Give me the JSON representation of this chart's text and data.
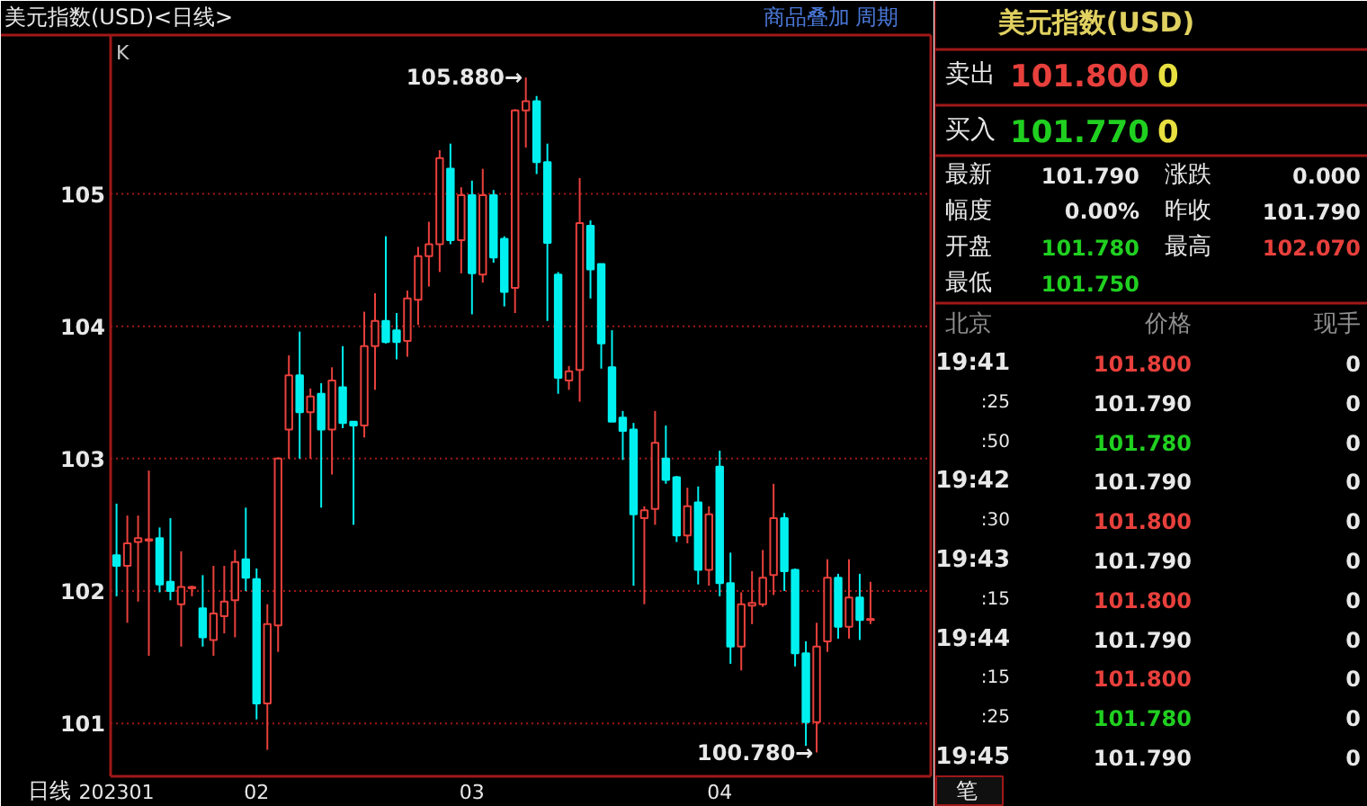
{
  "chart_data": [
    {
      "type": "candlestick",
      "title": "美元指数(USD)<日线>",
      "xlabel": "日线",
      "categories": [
        "202301",
        null,
        null,
        null,
        null,
        null,
        null,
        null,
        null,
        null,
        null,
        null,
        null,
        "02",
        null,
        null,
        null,
        null,
        null,
        null,
        null,
        null,
        null,
        null,
        null,
        null,
        null,
        null,
        null,
        null,
        null,
        null,
        null,
        "03",
        null,
        null,
        null,
        null,
        null,
        null,
        null,
        null,
        null,
        null,
        null,
        null,
        null,
        null,
        null,
        null,
        null,
        null,
        null,
        null,
        null,
        null,
        "04",
        null,
        null,
        null,
        null,
        null,
        null,
        null,
        null,
        null,
        null,
        null,
        null,
        null,
        null
      ],
      "ohlc": [
        [
          102.27,
          102.66,
          101.96,
          102.19
        ],
        [
          102.19,
          102.57,
          101.76,
          102.36
        ],
        [
          102.37,
          102.57,
          101.92,
          102.4
        ],
        [
          102.38,
          102.91,
          101.51,
          102.39
        ],
        [
          102.4,
          102.48,
          101.99,
          102.05
        ],
        [
          102.07,
          102.55,
          101.93,
          102.0
        ],
        [
          101.9,
          102.3,
          101.58,
          102.03
        ],
        [
          102.02,
          102.04,
          101.96,
          102.03
        ],
        [
          101.87,
          102.12,
          101.58,
          101.65
        ],
        [
          101.63,
          102.19,
          101.51,
          101.83
        ],
        [
          101.81,
          102.19,
          101.68,
          101.92
        ],
        [
          101.93,
          102.31,
          101.65,
          102.22
        ],
        [
          102.24,
          102.63,
          102.0,
          102.1
        ],
        [
          102.09,
          102.17,
          101.03,
          101.15
        ],
        [
          101.15,
          101.9,
          100.8,
          101.75
        ],
        [
          101.74,
          103.01,
          101.54,
          103.0
        ],
        [
          103.22,
          103.78,
          103.0,
          103.63
        ],
        [
          103.63,
          103.96,
          103.0,
          103.35
        ],
        [
          103.35,
          103.53,
          103.0,
          103.47
        ],
        [
          103.49,
          103.57,
          102.63,
          103.22
        ],
        [
          103.22,
          103.69,
          102.88,
          103.59
        ],
        [
          103.54,
          103.85,
          103.23,
          103.27
        ],
        [
          103.28,
          103.28,
          102.5,
          103.25
        ],
        [
          103.25,
          104.11,
          103.16,
          103.85
        ],
        [
          103.85,
          104.25,
          103.52,
          104.04
        ],
        [
          104.04,
          104.68,
          103.87,
          103.88
        ],
        [
          103.97,
          104.1,
          103.75,
          103.88
        ],
        [
          103.89,
          104.27,
          103.77,
          104.21
        ],
        [
          104.2,
          104.6,
          104.01,
          104.53
        ],
        [
          104.53,
          104.79,
          104.3,
          104.62
        ],
        [
          104.62,
          105.33,
          104.41,
          105.27
        ],
        [
          105.19,
          105.38,
          104.62,
          104.65
        ],
        [
          104.65,
          105.05,
          104.4,
          104.99
        ],
        [
          104.99,
          105.1,
          104.09,
          104.4
        ],
        [
          104.39,
          105.19,
          104.33,
          104.99
        ],
        [
          104.99,
          105.03,
          104.48,
          104.52
        ],
        [
          104.66,
          104.68,
          104.15,
          104.26
        ],
        [
          104.29,
          105.64,
          104.1,
          105.63
        ],
        [
          105.63,
          105.88,
          105.35,
          105.7
        ],
        [
          105.7,
          105.74,
          105.15,
          105.24
        ],
        [
          105.24,
          105.38,
          104.04,
          104.63
        ],
        [
          104.39,
          104.41,
          103.49,
          103.61
        ],
        [
          103.59,
          103.7,
          103.52,
          103.66
        ],
        [
          103.67,
          105.12,
          103.43,
          104.78
        ],
        [
          104.76,
          104.8,
          104.21,
          104.43
        ],
        [
          104.47,
          104.47,
          103.68,
          103.87
        ],
        [
          103.69,
          103.97,
          103.28,
          103.28
        ],
        [
          103.31,
          103.36,
          102.99,
          103.21
        ],
        [
          103.22,
          103.27,
          102.04,
          102.58
        ],
        [
          102.55,
          102.64,
          101.9,
          102.61
        ],
        [
          102.62,
          103.36,
          102.5,
          103.12
        ],
        [
          103.0,
          103.25,
          102.81,
          102.84
        ],
        [
          102.86,
          102.87,
          102.37,
          102.42
        ],
        [
          102.42,
          102.78,
          102.36,
          102.64
        ],
        [
          102.67,
          102.79,
          102.05,
          102.16
        ],
        [
          102.16,
          102.64,
          102.04,
          102.58
        ],
        [
          102.94,
          103.06,
          101.96,
          102.06
        ],
        [
          102.06,
          102.29,
          101.45,
          101.58
        ],
        [
          101.58,
          101.99,
          101.4,
          101.9
        ],
        [
          101.89,
          102.15,
          101.75,
          101.91
        ],
        [
          101.9,
          102.31,
          101.88,
          102.1
        ],
        [
          102.12,
          102.81,
          101.97,
          102.55
        ],
        [
          102.55,
          102.59,
          102.0,
          102.15
        ],
        [
          102.16,
          102.17,
          101.43,
          101.53
        ],
        [
          101.53,
          101.62,
          100.83,
          101.01
        ],
        [
          101.01,
          101.76,
          100.78,
          101.58
        ],
        [
          101.62,
          102.24,
          101.54,
          102.1
        ],
        [
          102.1,
          102.13,
          101.64,
          101.73
        ],
        [
          101.73,
          102.24,
          101.64,
          101.95
        ],
        [
          101.95,
          102.13,
          101.63,
          101.78
        ],
        [
          101.78,
          102.07,
          101.75,
          101.79
        ]
      ],
      "ylim": [
        100.6,
        106.2
      ],
      "yticks": [
        101,
        102,
        103,
        104,
        105
      ],
      "grid": "y",
      "annotations": [
        "K",
        "商品叠加",
        "周期",
        "105.880→",
        "100.780→"
      ]
    },
    {
      "type": "other",
      "title": "美元指数(USD)",
      "annotations": [
        "卖出",
        "101.800",
        "0",
        "买入",
        "101.770",
        "0",
        "最新",
        "101.790",
        "涨跌",
        "0.000",
        "幅度",
        "0.00%",
        "昨收",
        "101.790",
        "开盘",
        "101.780",
        "最高",
        "102.070",
        "最低",
        "101.750",
        "北京",
        "价格",
        "现手",
        "19:41",
        "101.800",
        "0",
        ":25",
        "101.790",
        "0",
        ":50",
        "101.780",
        "0",
        "19:42",
        "101.790",
        "0",
        ":30",
        "101.800",
        "0",
        "19:43",
        "101.790",
        "0",
        ":15",
        "101.800",
        "0",
        "19:44",
        "101.790",
        "0",
        ":15",
        "101.800",
        "0",
        ":25",
        "101.780",
        "0",
        "19:45",
        "101.790",
        "0",
        "笔"
      ]
    }
  ]
}
